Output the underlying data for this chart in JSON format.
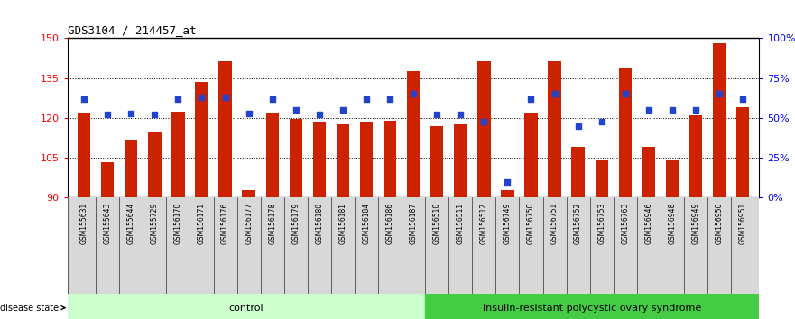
{
  "title": "GDS3104 / 214457_at",
  "samples": [
    "GSM155631",
    "GSM155643",
    "GSM155644",
    "GSM155729",
    "GSM156170",
    "GSM156171",
    "GSM156176",
    "GSM156177",
    "GSM156178",
    "GSM156179",
    "GSM156180",
    "GSM156181",
    "GSM156184",
    "GSM156186",
    "GSM156187",
    "GSM156510",
    "GSM156511",
    "GSM156512",
    "GSM156749",
    "GSM156750",
    "GSM156751",
    "GSM156752",
    "GSM156753",
    "GSM156763",
    "GSM156946",
    "GSM156948",
    "GSM156949",
    "GSM156950",
    "GSM156951"
  ],
  "bar_values": [
    122.0,
    103.5,
    112.0,
    115.0,
    122.5,
    133.5,
    141.5,
    93.0,
    122.0,
    119.5,
    118.5,
    117.5,
    118.5,
    119.0,
    137.5,
    117.0,
    117.5,
    141.5,
    93.0,
    122.0,
    141.5,
    109.0,
    104.5,
    138.5,
    109.0,
    104.0,
    121.0,
    148.0,
    124.0
  ],
  "percentile_values": [
    62,
    52,
    53,
    52,
    62,
    63,
    63,
    53,
    62,
    55,
    52,
    55,
    62,
    62,
    65,
    52,
    52,
    48,
    10,
    62,
    65,
    45,
    48,
    65,
    55,
    55,
    55,
    65,
    62
  ],
  "control_count": 15,
  "ylim_left": [
    90,
    150
  ],
  "ylim_right": [
    0,
    100
  ],
  "yticks_left": [
    90,
    105,
    120,
    135,
    150
  ],
  "yticks_right": [
    0,
    25,
    50,
    75,
    100
  ],
  "ytick_labels_left": [
    "90",
    "105",
    "120",
    "135",
    "150"
  ],
  "ytick_labels_right": [
    "0%",
    "25%",
    "50%",
    "75%",
    "100%"
  ],
  "bar_color": "#cc2200",
  "dot_color": "#2244cc",
  "background_color": "#ffffff",
  "xticklabel_bg": "#d8d8d8",
  "group_colors": [
    "#ccffcc",
    "#44cc44"
  ],
  "group_labels": [
    "control",
    "insulin-resistant polycystic ovary syndrome"
  ],
  "bar_width": 0.55
}
